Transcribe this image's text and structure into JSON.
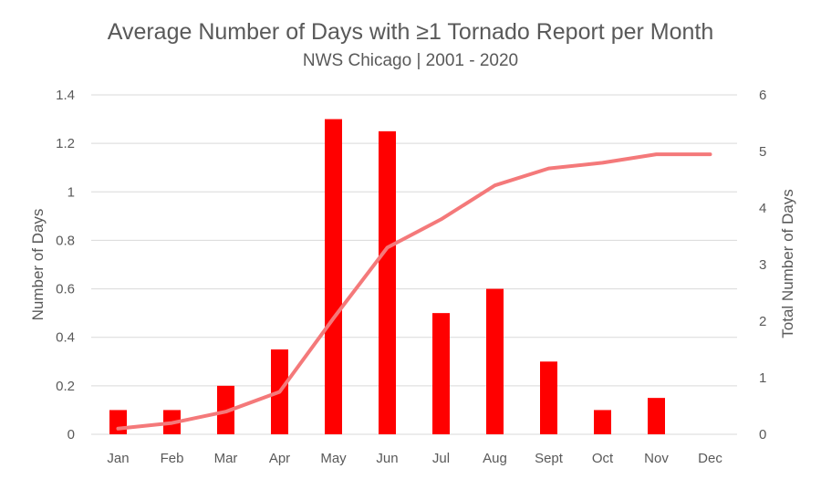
{
  "chart_data": {
    "type": "bar",
    "title": "Average Number of Days with ≥1 Tornado Report per Month",
    "subtitle": "NWS Chicago | 2001 - 2020",
    "categories": [
      "Jan",
      "Feb",
      "Mar",
      "Apr",
      "May",
      "Jun",
      "Jul",
      "Aug",
      "Sept",
      "Oct",
      "Nov",
      "Dec"
    ],
    "ylabel": "Number of Days",
    "y2label": "Total Number of Days",
    "ylim": [
      0,
      1.4
    ],
    "y2lim": [
      0,
      6
    ],
    "yticks": [
      "0",
      "0.2",
      "0.4",
      "0.6",
      "0.8",
      "1",
      "1.2",
      "1.4"
    ],
    "y2ticks": [
      "0",
      "1",
      "2",
      "3",
      "4",
      "5",
      "6"
    ],
    "grid": true,
    "series": [
      {
        "type": "bar",
        "axis": "left",
        "color": "#ff0000",
        "values": [
          0.1,
          0.1,
          0.2,
          0.35,
          1.3,
          1.25,
          0.5,
          0.6,
          0.3,
          0.1,
          0.15,
          0
        ]
      },
      {
        "type": "line",
        "axis": "right",
        "color": "#f4797a",
        "values": [
          0.1,
          0.2,
          0.4,
          0.75,
          2.05,
          3.3,
          3.8,
          4.4,
          4.7,
          4.8,
          4.95,
          4.95
        ]
      }
    ]
  }
}
